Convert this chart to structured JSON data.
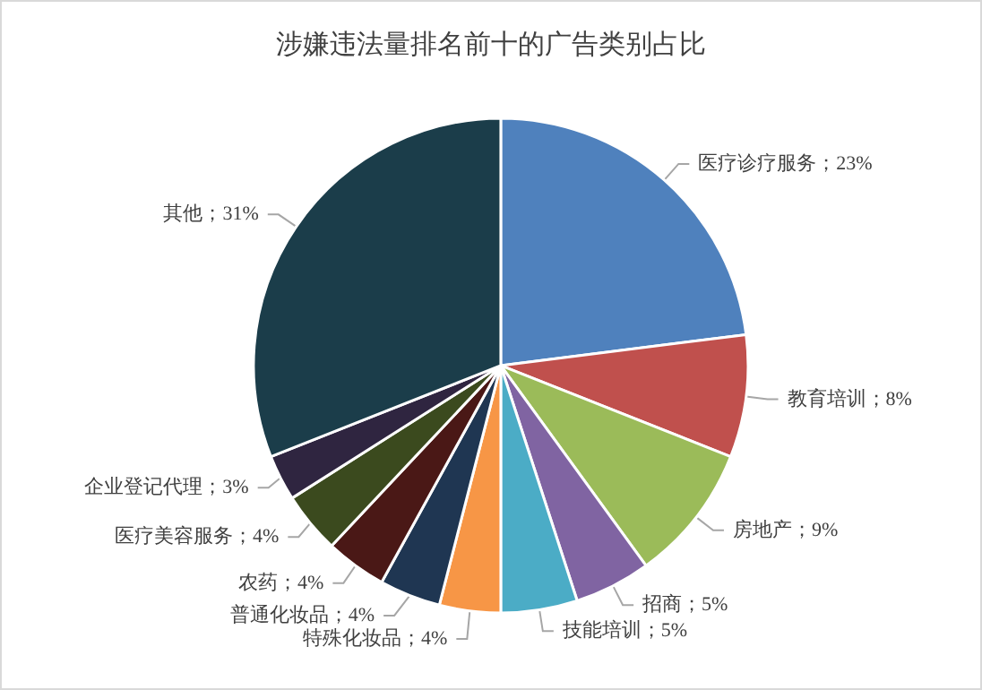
{
  "chart_data": {
    "type": "pie",
    "title": "涉嫌违法量排名前十的广告类别占比",
    "categories": [
      "医疗诊疗服务",
      "教育培训",
      "房地产",
      "招商",
      "技能培训",
      "特殊化妆品",
      "普通化妆品",
      "农药",
      "医疗美容服务",
      "企业登记代理",
      "其他"
    ],
    "values": [
      23,
      8,
      9,
      5,
      5,
      4,
      4,
      4,
      4,
      3,
      31
    ],
    "value_labels": [
      "；23%",
      "；8%",
      "；9%",
      "；5%",
      "；5%",
      "；4%",
      "；4%",
      "；4%",
      "；4%",
      "；3%",
      "；31%"
    ],
    "colors": [
      "#4f81bd",
      "#c0504d",
      "#9bbb59",
      "#8064a2",
      "#4bacc6",
      "#f79646",
      "#1f3652",
      "#4a1816",
      "#3b4a1e",
      "#2f2540",
      "#1b3d4a"
    ]
  }
}
